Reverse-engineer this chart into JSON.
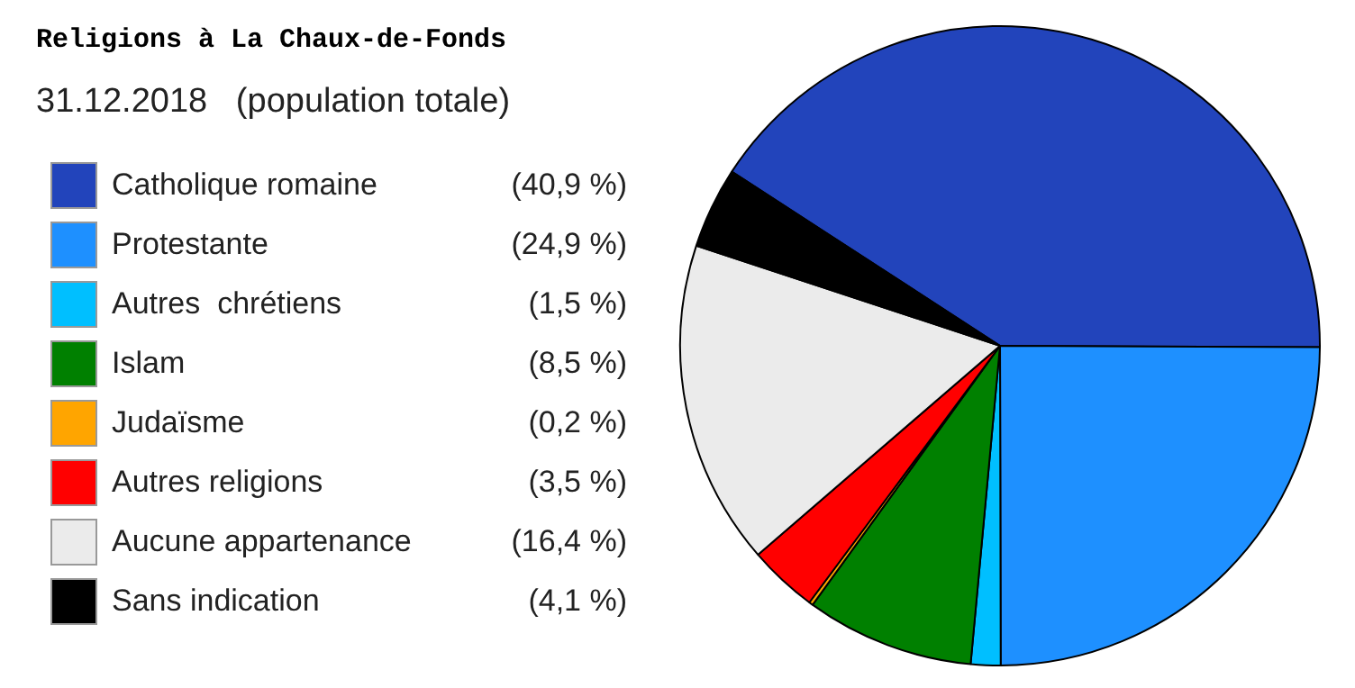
{
  "chart_data": {
    "type": "pie",
    "title": "Religions à La Chaux-de-Fonds",
    "subtitle": "31.12.2018   (population totale)",
    "categories": [
      "Catholique romaine",
      "Protestante",
      "Autres  chrétiens",
      "Islam",
      "Judaïsme",
      "Autres religions",
      "Aucune appartenance",
      "Sans indication"
    ],
    "values": [
      40.9,
      24.9,
      1.5,
      8.5,
      0.2,
      3.5,
      16.4,
      4.1
    ],
    "value_labels": [
      "(40,9 %)",
      "(24,9 %)",
      "(1,5 %)",
      "(8,5 %)",
      "(0,2 %)",
      "(3,5 %)",
      "(16,4 %)",
      "(4,1 %)"
    ],
    "colors": [
      "#2244bb",
      "#1e90ff",
      "#00bfff",
      "#008000",
      "#ffa500",
      "#ff0000",
      "#ebebeb",
      "#000000"
    ],
    "legend": "left"
  }
}
